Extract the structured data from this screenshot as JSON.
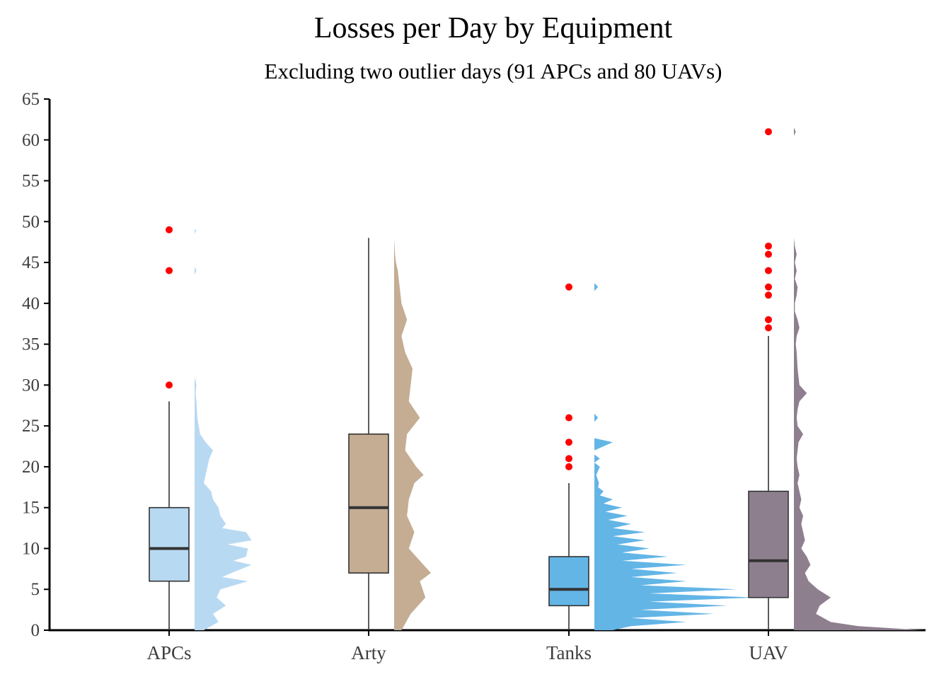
{
  "chart_data": {
    "type": "box",
    "title": "Losses per Day by Equipment",
    "subtitle": "Excluding two outlier days (91 APCs and 80 UAVs)",
    "xlabel": "",
    "ylabel": "",
    "ylim": [
      0,
      65
    ],
    "yticks": [
      0,
      5,
      10,
      15,
      20,
      25,
      30,
      35,
      40,
      45,
      50,
      55,
      60,
      65
    ],
    "grid": false,
    "legend": "none",
    "categories": [
      "APCs",
      "Arty",
      "Tanks",
      "UAV"
    ],
    "series": [
      {
        "category": "APCs",
        "color": "#b8d9f2",
        "q1": 6,
        "median": 10,
        "q3": 15,
        "whisker_low": 0,
        "whisker_high": 28,
        "outliers": [
          30,
          44,
          49
        ],
        "density": [
          [
            0,
            0.1
          ],
          [
            1,
            0.26
          ],
          [
            2,
            0.2
          ],
          [
            3,
            0.34
          ],
          [
            4,
            0.24
          ],
          [
            5,
            0.28
          ],
          [
            6,
            0.58
          ],
          [
            6.5,
            0.3
          ],
          [
            7,
            0.4
          ],
          [
            8,
            0.62
          ],
          [
            8.5,
            0.42
          ],
          [
            9,
            0.56
          ],
          [
            10,
            0.58
          ],
          [
            10.5,
            0.36
          ],
          [
            11,
            0.62
          ],
          [
            12,
            0.56
          ],
          [
            12.5,
            0.3
          ],
          [
            13,
            0.34
          ],
          [
            14,
            0.28
          ],
          [
            15,
            0.26
          ],
          [
            16,
            0.2
          ],
          [
            17,
            0.18
          ],
          [
            18,
            0.1
          ],
          [
            19,
            0.12
          ],
          [
            20,
            0.14
          ],
          [
            21,
            0.16
          ],
          [
            22,
            0.2
          ],
          [
            23,
            0.12
          ],
          [
            24,
            0.06
          ],
          [
            26,
            0.03
          ],
          [
            28,
            0.02
          ],
          [
            29,
            0.01
          ],
          [
            30,
            0.02
          ],
          [
            31,
            0.0
          ],
          [
            43.5,
            0.0
          ],
          [
            44,
            0.02
          ],
          [
            44.5,
            0.0
          ],
          [
            48.5,
            0.0
          ],
          [
            49,
            0.02
          ]
        ]
      },
      {
        "category": "Arty",
        "color": "#c4ad93",
        "q1": 7,
        "median": 15,
        "q3": 24,
        "whisker_low": 0,
        "whisker_high": 48,
        "outliers": [],
        "density": [
          [
            0,
            0.08
          ],
          [
            2,
            0.18
          ],
          [
            4,
            0.34
          ],
          [
            6,
            0.28
          ],
          [
            7,
            0.4
          ],
          [
            8,
            0.32
          ],
          [
            10,
            0.16
          ],
          [
            12,
            0.22
          ],
          [
            14,
            0.14
          ],
          [
            16,
            0.16
          ],
          [
            18,
            0.22
          ],
          [
            19,
            0.32
          ],
          [
            20,
            0.24
          ],
          [
            22,
            0.12
          ],
          [
            24,
            0.14
          ],
          [
            26,
            0.28
          ],
          [
            28,
            0.16
          ],
          [
            30,
            0.18
          ],
          [
            32,
            0.2
          ],
          [
            34,
            0.12
          ],
          [
            36,
            0.08
          ],
          [
            38,
            0.14
          ],
          [
            40,
            0.08
          ],
          [
            42,
            0.06
          ],
          [
            44,
            0.04
          ],
          [
            45,
            0.02
          ],
          [
            46,
            0.01
          ],
          [
            48,
            0.0
          ]
        ]
      },
      {
        "category": "Tanks",
        "color": "#63b5e6",
        "q1": 3,
        "median": 5,
        "q3": 9,
        "whisker_low": 0,
        "whisker_high": 18,
        "outliers": [
          20,
          21,
          23,
          26,
          42
        ],
        "density": [
          [
            0,
            0.2
          ],
          [
            0.5,
            0.4
          ],
          [
            1,
            1.0
          ],
          [
            1.5,
            0.4
          ],
          [
            2,
            1.3
          ],
          [
            2.5,
            0.5
          ],
          [
            3,
            1.45
          ],
          [
            3.5,
            0.6
          ],
          [
            4,
            1.75
          ],
          [
            4.5,
            0.6
          ],
          [
            5,
            1.55
          ],
          [
            5.5,
            0.5
          ],
          [
            6,
            1.0
          ],
          [
            6.5,
            0.4
          ],
          [
            7,
            0.9
          ],
          [
            7.5,
            0.4
          ],
          [
            8,
            1.0
          ],
          [
            8.5,
            0.3
          ],
          [
            9,
            0.8
          ],
          [
            9.5,
            0.3
          ],
          [
            10,
            0.6
          ],
          [
            10.5,
            0.25
          ],
          [
            11,
            0.55
          ],
          [
            11.5,
            0.2
          ],
          [
            12,
            0.55
          ],
          [
            12.5,
            0.2
          ],
          [
            13,
            0.4
          ],
          [
            13.5,
            0.15
          ],
          [
            14,
            0.36
          ],
          [
            14.5,
            0.12
          ],
          [
            15,
            0.3
          ],
          [
            15.5,
            0.1
          ],
          [
            16,
            0.2
          ],
          [
            16.5,
            0.06
          ],
          [
            17,
            0.1
          ],
          [
            17.5,
            0.04
          ],
          [
            18,
            0.05
          ],
          [
            19,
            0.02
          ],
          [
            20,
            0.06
          ],
          [
            20.5,
            0.0
          ],
          [
            21,
            0.06
          ],
          [
            21.5,
            0.0
          ],
          [
            22,
            0.0
          ],
          [
            23,
            0.2
          ],
          [
            23.5,
            0.0
          ],
          [
            25.5,
            0.0
          ],
          [
            26,
            0.04
          ],
          [
            26.5,
            0.0
          ],
          [
            41.5,
            0.0
          ],
          [
            42,
            0.04
          ],
          [
            42.5,
            0.0
          ]
        ]
      },
      {
        "category": "UAV",
        "color": "#8e7f8f",
        "q1": 4,
        "median": 8.5,
        "q3": 17,
        "whisker_low": 0,
        "whisker_high": 36,
        "outliers": [
          37,
          38,
          41,
          42,
          44,
          46,
          47,
          61
        ],
        "density": [
          [
            0,
            1.4
          ],
          [
            0.5,
            0.7
          ],
          [
            1,
            0.4
          ],
          [
            2,
            0.24
          ],
          [
            3,
            0.28
          ],
          [
            4,
            0.4
          ],
          [
            5,
            0.26
          ],
          [
            6,
            0.16
          ],
          [
            7,
            0.12
          ],
          [
            8,
            0.18
          ],
          [
            9,
            0.14
          ],
          [
            10,
            0.08
          ],
          [
            11,
            0.12
          ],
          [
            12,
            0.1
          ],
          [
            13,
            0.08
          ],
          [
            14,
            0.1
          ],
          [
            15,
            0.06
          ],
          [
            16,
            0.08
          ],
          [
            17,
            0.06
          ],
          [
            18,
            0.04
          ],
          [
            19,
            0.06
          ],
          [
            20,
            0.04
          ],
          [
            21,
            0.03
          ],
          [
            22,
            0.04
          ],
          [
            23,
            0.05
          ],
          [
            24,
            0.1
          ],
          [
            25,
            0.04
          ],
          [
            26,
            0.03
          ],
          [
            27,
            0.04
          ],
          [
            28,
            0.06
          ],
          [
            29,
            0.14
          ],
          [
            30,
            0.06
          ],
          [
            32,
            0.04
          ],
          [
            34,
            0.03
          ],
          [
            35,
            0.02
          ],
          [
            36,
            0.03
          ],
          [
            37,
            0.06
          ],
          [
            38,
            0.04
          ],
          [
            39,
            0.01
          ],
          [
            40,
            0.01
          ],
          [
            41,
            0.03
          ],
          [
            42,
            0.04
          ],
          [
            43,
            0.01
          ],
          [
            44,
            0.03
          ],
          [
            45,
            0.01
          ],
          [
            46,
            0.03
          ],
          [
            47,
            0.01
          ],
          [
            48,
            0.0
          ],
          [
            60.5,
            0.0
          ],
          [
            61,
            0.02
          ],
          [
            61.5,
            0.0
          ]
        ]
      }
    ]
  }
}
